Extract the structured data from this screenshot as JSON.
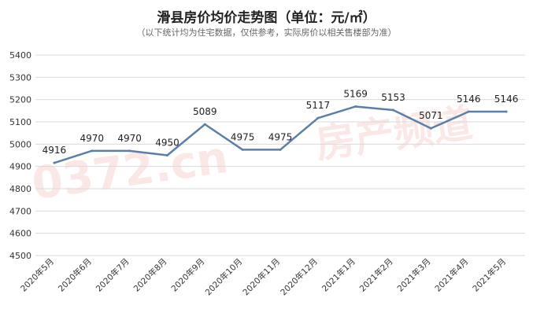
{
  "title": "滑县房价均价走势图（单位：元/㎡）",
  "subtitle": "（以下统计均为住宅数据，仅供参考，实际房价以相关售楼部为准）",
  "watermark": {
    "logo": "0372.cn",
    "text": "房产频道"
  },
  "colors": {
    "line": "#5b7fa8",
    "grid": "#d9d9d9",
    "axis_text": "#333333"
  },
  "chart_data": {
    "type": "line",
    "title": "滑县房价均价走势图（单位：元/㎡）",
    "categories": [
      "2020年5月",
      "2020年6月",
      "2020年7月",
      "2020年8月",
      "2020年9月",
      "2020年10月",
      "2020年11月",
      "2020年12月",
      "2021年1月",
      "2021年2月",
      "2021年3月",
      "2021年4月",
      "2021年5月"
    ],
    "values": [
      4916,
      4970,
      4970,
      4950,
      5089,
      4975,
      4975,
      5117,
      5169,
      5153,
      5071,
      5146,
      5146
    ],
    "ylim": [
      4500,
      5400
    ],
    "yticks": [
      4500,
      4600,
      4700,
      4800,
      4900,
      5000,
      5100,
      5200,
      5300,
      5400
    ],
    "grid": true,
    "legend": "none",
    "data_labels": true
  }
}
